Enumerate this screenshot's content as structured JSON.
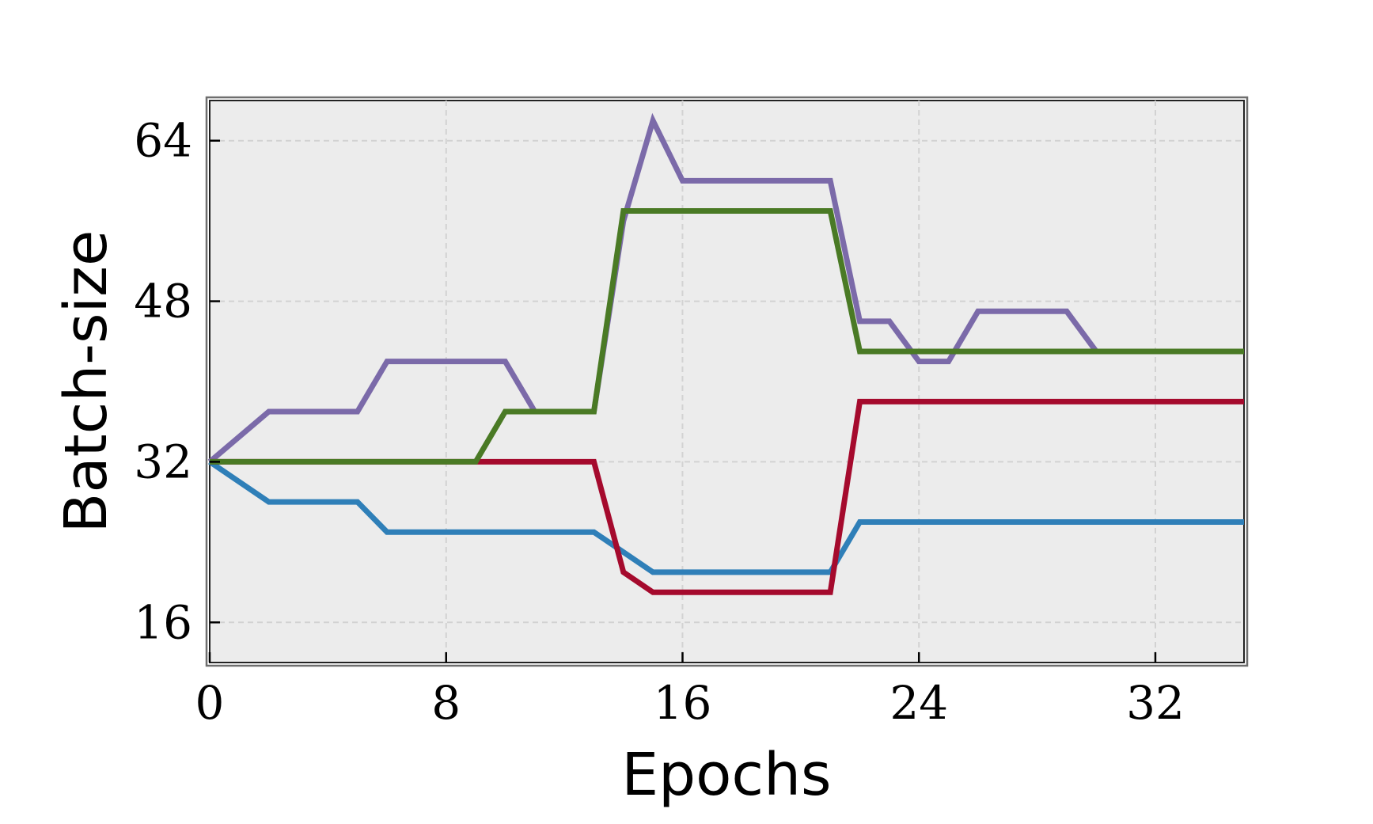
{
  "chart_data": {
    "type": "line",
    "title": "",
    "xlabel": "Epochs",
    "ylabel": "Batch-size",
    "xlim": [
      0,
      35
    ],
    "ylim": [
      12,
      68
    ],
    "xticks": [
      0,
      8,
      16,
      24,
      32
    ],
    "yticks": [
      16,
      32,
      48,
      64
    ],
    "grid": true,
    "legend": "none",
    "plot_background": "#ececec",
    "series": [
      {
        "color": "#7b6aa9",
        "points": [
          [
            0,
            32
          ],
          [
            2,
            37
          ],
          [
            5,
            37
          ],
          [
            6,
            42
          ],
          [
            10,
            42
          ],
          [
            11,
            37
          ],
          [
            13,
            37
          ],
          [
            14,
            56
          ],
          [
            15,
            66
          ],
          [
            16,
            60
          ],
          [
            21,
            60
          ],
          [
            22,
            46
          ],
          [
            23,
            46
          ],
          [
            24,
            42
          ],
          [
            25,
            42
          ],
          [
            26,
            47
          ],
          [
            29,
            47
          ],
          [
            30,
            43
          ],
          [
            35,
            43
          ]
        ]
      },
      {
        "color": "#2f7fb8",
        "points": [
          [
            0,
            32
          ],
          [
            2,
            28
          ],
          [
            5,
            28
          ],
          [
            6,
            25
          ],
          [
            13,
            25
          ],
          [
            15,
            21
          ],
          [
            21,
            21
          ],
          [
            22,
            26
          ],
          [
            35,
            26
          ]
        ]
      },
      {
        "color": "#a50a2d",
        "points": [
          [
            0,
            32
          ],
          [
            13,
            32
          ],
          [
            14,
            21
          ],
          [
            15,
            19
          ],
          [
            21,
            19
          ],
          [
            22,
            38
          ],
          [
            35,
            38
          ]
        ]
      },
      {
        "color": "#4a7a25",
        "points": [
          [
            0,
            32
          ],
          [
            9,
            32
          ],
          [
            10,
            37
          ],
          [
            13,
            37
          ],
          [
            14,
            57
          ],
          [
            21,
            57
          ],
          [
            22,
            43
          ],
          [
            35,
            43
          ]
        ]
      }
    ]
  }
}
